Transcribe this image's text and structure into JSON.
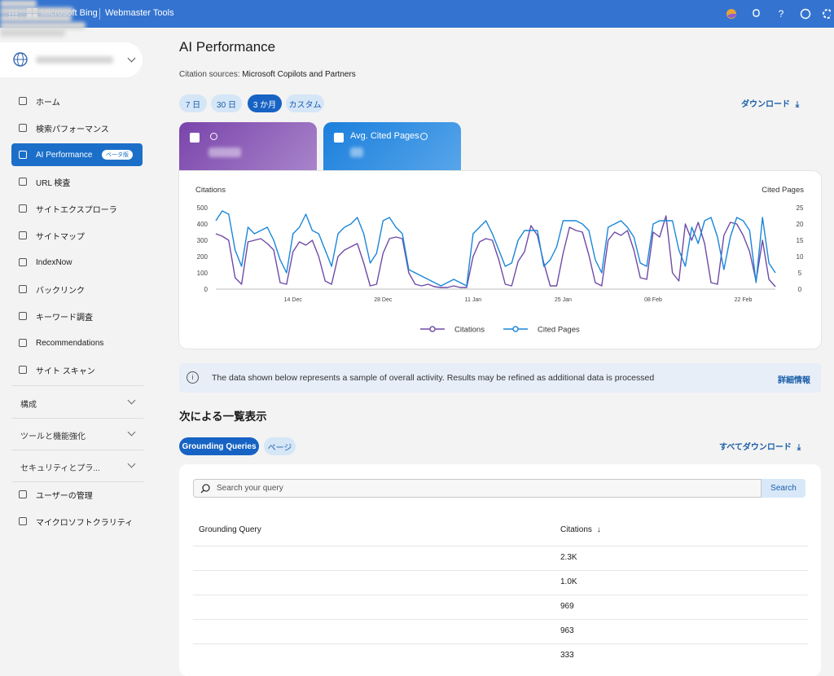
{
  "top_bar": {
    "brand": "Microsoft Bing",
    "product": "Webmaster Tools"
  },
  "sidebar": {
    "nav": [
      "ホーム",
      "検索パフォーマンス",
      "AI Performance",
      "URL 検査",
      "サイトエクスプローラ",
      "サイトマップ",
      "IndexNow",
      "バックリンク",
      "キーワード調査",
      "Recommendations",
      "サイト スキャン"
    ],
    "badge": "ベータ版",
    "groups": [
      "構成",
      "ツールと機能強化",
      "セキュリティとプラ..."
    ],
    "bottom": [
      "ユーザーの管理",
      "マイクロソフトクラリティ"
    ]
  },
  "main": {
    "title": "AI Performance",
    "source_label": "Citation sources:",
    "source_value": "Microsoft Copilots and Partners",
    "ranges": [
      "7 日",
      "30 日",
      "3 か月",
      "カスタム"
    ],
    "download": "ダウンロード",
    "metric_card": "Avg. Cited Pages",
    "chart": {
      "type": "line",
      "y_label": "Citations",
      "y2_label": "Cited Pages",
      "categories": [
        null,
        null,
        null,
        null,
        null,
        null,
        null,
        null,
        null,
        null,
        null,
        null,
        "14 Dec",
        null,
        null,
        null,
        null,
        null,
        null,
        null,
        null,
        null,
        null,
        null,
        null,
        null,
        "28 Dec",
        null,
        null,
        null,
        null,
        null,
        null,
        null,
        null,
        null,
        null,
        null,
        null,
        null,
        "11 Jan",
        null,
        null,
        null,
        null,
        null,
        null,
        null,
        null,
        null,
        null,
        null,
        null,
        null,
        "25 Jan",
        null,
        null,
        null,
        null,
        null,
        null,
        null,
        null,
        null,
        null,
        null,
        null,
        null,
        "08 Feb",
        null,
        null,
        null,
        null,
        null,
        null,
        null,
        null,
        null,
        null,
        null,
        null,
        null,
        "22 Feb",
        null,
        null,
        null,
        null,
        null
      ],
      "series": [
        {
          "name": "Citations",
          "color": "#6e4aa6",
          "values": [
            340,
            325,
            300,
            70,
            30,
            290,
            300,
            310,
            280,
            240,
            40,
            30,
            230,
            290,
            270,
            300,
            200,
            50,
            30,
            200,
            240,
            260,
            280,
            160,
            20,
            30,
            220,
            310,
            320,
            310,
            100,
            30,
            20,
            30,
            15,
            10,
            10,
            20,
            10,
            10,
            200,
            290,
            310,
            300,
            180,
            30,
            20,
            170,
            230,
            390,
            330,
            160,
            20,
            20,
            220,
            380,
            360,
            350,
            210,
            40,
            20,
            300,
            350,
            330,
            360,
            240,
            70,
            60,
            350,
            320,
            450,
            100,
            50,
            400,
            300,
            410,
            280,
            40,
            30,
            330,
            410,
            400,
            330,
            230,
            50,
            300,
            60,
            15
          ]
        },
        {
          "name": "Cited Pages",
          "color": "#1a86d9",
          "axis": "y2",
          "values": [
            21,
            24,
            23,
            12,
            7,
            19,
            17,
            18,
            19,
            15,
            9,
            5,
            17,
            19,
            23,
            18,
            17,
            12,
            7,
            17,
            19,
            20,
            22,
            17,
            8,
            11,
            21,
            22,
            19,
            17,
            6,
            5,
            4,
            3,
            2,
            1,
            2,
            3,
            2,
            1,
            17,
            19,
            21,
            17,
            12,
            7,
            8,
            15,
            18,
            18,
            18,
            7,
            9,
            13,
            21,
            21,
            21,
            20,
            18,
            9,
            5,
            19,
            20,
            21,
            19,
            16,
            8,
            7,
            20,
            21,
            21,
            21,
            12,
            7,
            19,
            14,
            21,
            22,
            16,
            6,
            16,
            22,
            21,
            18,
            2,
            22,
            8,
            5
          ]
        }
      ],
      "ylim": [
        0,
        500
      ],
      "yticks": [
        0,
        100,
        200,
        300,
        400,
        500
      ],
      "y2lim": [
        0,
        25
      ],
      "y2ticks": [
        0,
        5,
        10,
        15,
        20,
        25
      ]
    },
    "notice": "The data shown below represents a sample of overall activity. Results may be refined as additional data is processed",
    "notice_link": "詳細情報",
    "list_title": "次による一覧表示",
    "tabs": [
      "Grounding Queries",
      "ページ"
    ],
    "download_all": "すべてダウンロード",
    "search_placeholder": "Search your query",
    "search_button": "Search",
    "table": {
      "columns": [
        "Grounding Query",
        "Citations"
      ],
      "citations": [
        "2.3K",
        "1.0K",
        "969",
        "963",
        "333"
      ]
    }
  }
}
